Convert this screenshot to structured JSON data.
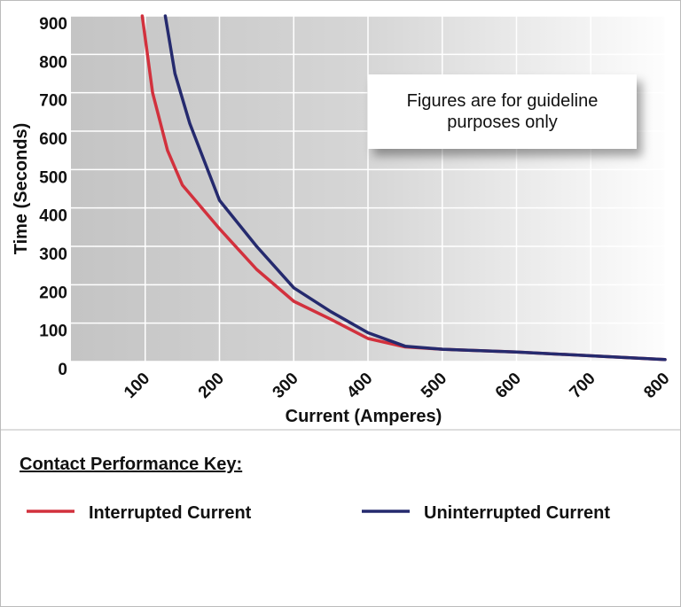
{
  "chart_data": {
    "type": "line",
    "title": "Contact Performance Key:",
    "x_label": "Current (Amperes)",
    "y_label": "Time (Seconds)",
    "annotation": "Figures are for guideline purposes only",
    "xlim": [
      0,
      800
    ],
    "xticks": [
      100,
      200,
      300,
      400,
      500,
      600,
      700,
      800
    ],
    "ylim": [
      0,
      900
    ],
    "yticks": [
      0,
      100,
      200,
      300,
      400,
      500,
      600,
      700,
      800,
      900
    ],
    "grid": true,
    "series": [
      {
        "name": "Interrupted Current",
        "color": "#d2313d",
        "x": [
          96,
          110,
          130,
          150,
          200,
          250,
          300,
          350,
          400,
          450,
          500,
          600,
          700,
          800
        ],
        "values": [
          900,
          700,
          550,
          460,
          346,
          240,
          157,
          110,
          60,
          38,
          32,
          25,
          15,
          5
        ]
      },
      {
        "name": "Uninterrupted Current",
        "color": "#252a6e",
        "x": [
          127,
          140,
          160,
          200,
          250,
          300,
          350,
          400,
          450,
          500,
          600,
          700,
          800
        ],
        "values": [
          900,
          750,
          620,
          420,
          300,
          192,
          130,
          75,
          40,
          32,
          25,
          15,
          5
        ]
      }
    ]
  }
}
